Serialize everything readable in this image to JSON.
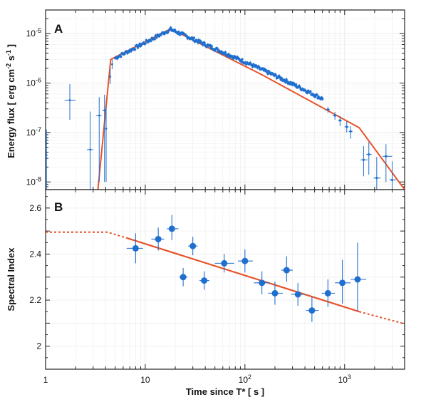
{
  "chart_data": [
    {
      "panel": "A",
      "type": "scatter",
      "xlabel": "Time since T* [ s ]",
      "ylabel": "Energy flux [ erg cm⁻² s⁻¹ ]",
      "ylabel_parts": [
        "Energy flux [ erg cm",
        "-2",
        " s",
        "-1",
        " ]"
      ],
      "xscale": "log",
      "yscale": "log",
      "xlim": [
        1,
        4000
      ],
      "ylim": [
        7e-09,
        3e-05
      ],
      "x_ticks": [
        1,
        10,
        100,
        1000
      ],
      "x_tick_labels": [
        "1",
        "10",
        "10^2",
        "10^3"
      ],
      "y_ticks": [
        1e-08,
        1e-07,
        1e-06,
        1e-05
      ],
      "y_tick_labels": [
        "10^-8",
        "10^-7",
        "10^-6",
        "10^-5"
      ],
      "grid": true,
      "colors": {
        "points": "#1f6fcf",
        "model": "#e8532a"
      },
      "model_line": {
        "x": [
          3.35,
          4.5,
          18,
          150,
          1400,
          4000
        ],
        "y": [
          7e-09,
          3e-06,
          1.25e-05,
          1.45e-06,
          1.25e-07,
          7e-09
        ]
      },
      "early_points": [
        {
          "x": 1.02,
          "y": 3.5e-08,
          "yerr_lo": 3e-08,
          "yerr_hi": 8e-08,
          "xerr": [
            0.02,
            0.02
          ]
        },
        {
          "x": 1.75,
          "y": 4.5e-07,
          "yerr_lo": 2.7e-07,
          "yerr_hi": 5e-07,
          "xerr": [
            0.2,
            0.25
          ]
        },
        {
          "x": 2.8,
          "y": 4.5e-08,
          "yerr_lo": 4e-08,
          "yerr_hi": 2.2e-07,
          "xerr": [
            0.2,
            0.2
          ]
        },
        {
          "x": 3.45,
          "y": 2.2e-07,
          "yerr_lo": 2.1e-07,
          "yerr_hi": 3e-07,
          "xerr": [
            0.25,
            0.2
          ]
        },
        {
          "x": 3.9,
          "y": 2.8e-07,
          "yerr_lo": 2.7e-07,
          "yerr_hi": 3e-07,
          "xerr": [
            0.2,
            0.2
          ]
        },
        {
          "x": 4.05,
          "y": 1.2e-07,
          "yerr_lo": 1.1e-07,
          "yerr_hi": 2e-07,
          "xerr": [
            0.1,
            0.1
          ]
        },
        {
          "x": 4.45,
          "y": 1.35e-06,
          "yerr_lo": 4e-07,
          "yerr_hi": 6e-07,
          "xerr": [
            0.08,
            0.08
          ]
        },
        {
          "x": 4.65,
          "y": 2.4e-06,
          "yerr_lo": 5e-07,
          "yerr_hi": 6e-07,
          "xerr": [
            0.08,
            0.08
          ]
        }
      ],
      "dense_segments": [
        {
          "from": 5.0,
          "to": 18,
          "y_from": 3.2e-06,
          "y_to": 1.22e-05,
          "n": 60
        },
        {
          "from": 18,
          "to": 600,
          "y_from": 1.22e-05,
          "y_to": 5.5e-07,
          "n": 190
        }
      ],
      "late_points": [
        {
          "x": 680,
          "y": 2.9e-07,
          "yerr": [
            4e-08,
            4e-08
          ],
          "xerr": [
            30,
            30
          ]
        },
        {
          "x": 800,
          "y": 2.2e-07,
          "yerr": [
            4e-08,
            4e-08
          ],
          "xerr": [
            40,
            40
          ]
        },
        {
          "x": 900,
          "y": 1.75e-07,
          "yerr": [
            4e-08,
            4e-08
          ],
          "xerr": [
            40,
            40
          ]
        },
        {
          "x": 1050,
          "y": 1.3e-07,
          "yerr": [
            3e-08,
            4e-08
          ],
          "xerr": [
            50,
            50
          ]
        },
        {
          "x": 1150,
          "y": 1.05e-07,
          "yerr": [
            3e-08,
            3e-08
          ],
          "xerr": [
            50,
            50
          ]
        },
        {
          "x": 1550,
          "y": 2.8e-08,
          "yerr": [
            1.5e-08,
            2.5e-08
          ],
          "xerr": [
            100,
            150
          ]
        },
        {
          "x": 1750,
          "y": 3.6e-08,
          "yerr": [
            2.2e-08,
            2.8e-08
          ],
          "xerr": [
            100,
            120
          ]
        },
        {
          "x": 2100,
          "y": 1.2e-08,
          "yerr": [
            8e-09,
            2e-08
          ],
          "xerr": [
            150,
            200
          ]
        },
        {
          "x": 2600,
          "y": 3.3e-08,
          "yerr": [
            2.3e-08,
            2.5e-08
          ],
          "xerr": [
            200,
            400
          ]
        },
        {
          "x": 3000,
          "y": 1.1e-08,
          "yerr": [
            7e-09,
            1.5e-08
          ],
          "xerr": [
            200,
            300
          ]
        }
      ]
    },
    {
      "panel": "B",
      "type": "scatter",
      "xlabel": "Time since T* [ s ]",
      "ylabel": "Spectral Index",
      "xscale": "log",
      "xlim": [
        1,
        4000
      ],
      "ylim": [
        1.9,
        2.68
      ],
      "y_ticks": [
        2.0,
        2.2,
        2.4,
        2.6
      ],
      "y_tick_labels": [
        "2",
        "2.2",
        "2.4",
        "2.6"
      ],
      "x_ticks": [
        1,
        10,
        100,
        1000
      ],
      "grid": true,
      "colors": {
        "points": "#1f6fcf",
        "model": "#e8532a"
      },
      "model_dashed_left": {
        "x": [
          1,
          4.2,
          6.5
        ],
        "y": [
          2.495,
          2.495,
          2.47
        ]
      },
      "model_solid": {
        "x": [
          6.5,
          1400
        ],
        "y": [
          2.47,
          2.15
        ]
      },
      "model_dashed_right": {
        "x": [
          1400,
          4000
        ],
        "y": [
          2.15,
          2.097
        ]
      },
      "points": [
        {
          "x": 8.0,
          "y": 2.425,
          "yerr": [
            0.065,
            0.065
          ],
          "xerr": [
            1.5,
            1.5
          ]
        },
        {
          "x": 13.5,
          "y": 2.465,
          "yerr": [
            0.05,
            0.05
          ],
          "xerr": [
            2.0,
            2.0
          ]
        },
        {
          "x": 18.5,
          "y": 2.51,
          "yerr": [
            0.05,
            0.06
          ],
          "xerr": [
            2.0,
            3.0
          ]
        },
        {
          "x": 24,
          "y": 2.3,
          "yerr": [
            0.04,
            0.04
          ],
          "xerr": [
            2.0,
            2.5
          ]
        },
        {
          "x": 30,
          "y": 2.435,
          "yerr": [
            0.04,
            0.04
          ],
          "xerr": [
            3.0,
            3.5
          ]
        },
        {
          "x": 39,
          "y": 2.285,
          "yerr": [
            0.04,
            0.04
          ],
          "xerr": [
            4,
            5
          ]
        },
        {
          "x": 62,
          "y": 2.36,
          "yerr": [
            0.04,
            0.04
          ],
          "xerr": [
            12,
            16
          ]
        },
        {
          "x": 100,
          "y": 2.37,
          "yerr": [
            0.05,
            0.05
          ],
          "xerr": [
            15,
            20
          ]
        },
        {
          "x": 148,
          "y": 2.275,
          "yerr": [
            0.05,
            0.05
          ],
          "xerr": [
            25,
            30
          ]
        },
        {
          "x": 200,
          "y": 2.23,
          "yerr": [
            0.05,
            0.05
          ],
          "xerr": [
            30,
            40
          ]
        },
        {
          "x": 262,
          "y": 2.33,
          "yerr": [
            0.05,
            0.06
          ],
          "xerr": [
            30,
            40
          ]
        },
        {
          "x": 340,
          "y": 2.225,
          "yerr": [
            0.05,
            0.05
          ],
          "xerr": [
            50,
            60
          ]
        },
        {
          "x": 470,
          "y": 2.155,
          "yerr": [
            0.05,
            0.06
          ],
          "xerr": [
            60,
            80
          ]
        },
        {
          "x": 680,
          "y": 2.23,
          "yerr": [
            0.06,
            0.06
          ],
          "xerr": [
            90,
            120
          ]
        },
        {
          "x": 950,
          "y": 2.275,
          "yerr": [
            0.09,
            0.1
          ],
          "xerr": [
            150,
            200
          ]
        },
        {
          "x": 1350,
          "y": 2.29,
          "yerr": [
            0.14,
            0.16
          ],
          "xerr": [
            200,
            300
          ]
        }
      ]
    }
  ]
}
